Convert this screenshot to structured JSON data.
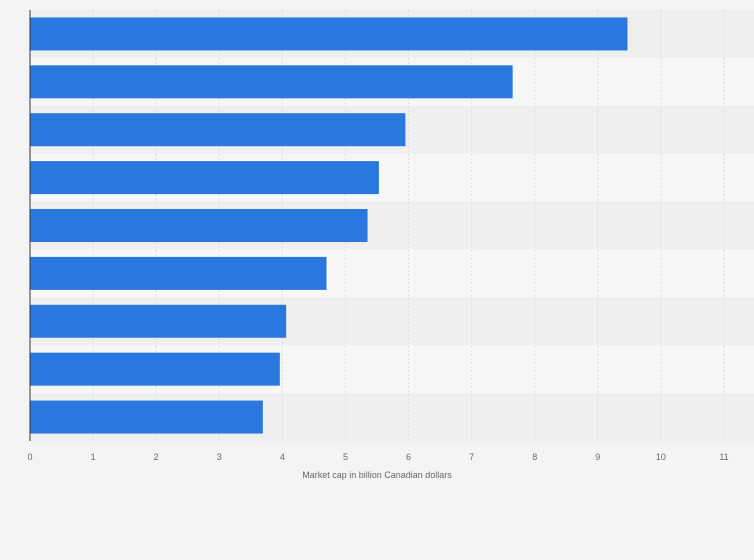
{
  "chart_data": {
    "type": "bar",
    "orientation": "horizontal",
    "title": "",
    "xlabel": "Market cap in billion Canadian dollars",
    "ylabel": "",
    "categories": [
      "",
      "",
      "",
      "",
      "",
      "",
      "",
      "",
      ""
    ],
    "values": [
      9.47,
      7.65,
      5.95,
      5.53,
      5.35,
      4.7,
      4.06,
      3.96,
      3.69
    ],
    "xlim": [
      0,
      11
    ],
    "x_ticks": [
      "0",
      "1",
      "2",
      "3",
      "4",
      "5",
      "6",
      "7",
      "8",
      "9",
      "10",
      "11"
    ],
    "grid": true,
    "legend": "none",
    "colors": {
      "bar": "#2878df",
      "background": "#f4f4f4",
      "band_dark": "#efefef",
      "band_light": "#f7f7f7",
      "gridline": "#dddddd",
      "axis": "#333333",
      "text": "#666666"
    }
  }
}
